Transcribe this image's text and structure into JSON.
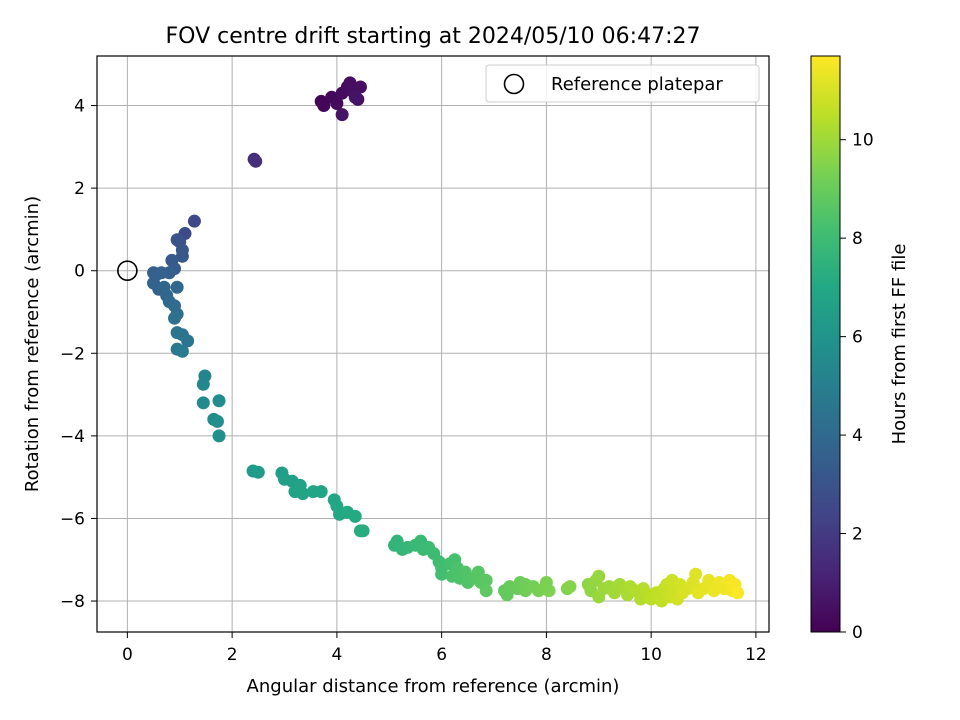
{
  "chart_data": {
    "type": "scatter",
    "title": "FOV centre drift starting at 2024/05/10 06:47:27",
    "xlabel": "Angular distance from reference (arcmin)",
    "ylabel": "Rotation from reference (arcmin)",
    "xlim": [
      -0.58,
      12.25
    ],
    "ylim": [
      -8.75,
      5.2
    ],
    "x_ticks": [
      0,
      2,
      4,
      6,
      8,
      10,
      12
    ],
    "x_tick_labels": [
      "0",
      "2",
      "4",
      "6",
      "8",
      "10",
      "12"
    ],
    "y_ticks": [
      -8,
      -6,
      -4,
      -2,
      0,
      2,
      4
    ],
    "y_tick_labels": [
      "−8",
      "−6",
      "−4",
      "−2",
      "0",
      "2",
      "4"
    ],
    "grid": true,
    "legend": {
      "position": "top-right",
      "entries": [
        {
          "label": "Reference platepar",
          "marker": "open-circle"
        }
      ]
    },
    "reference_point": {
      "x": 0,
      "y": 0
    },
    "colorbar": {
      "label": "Hours from first FF file",
      "range": [
        0,
        11.7
      ],
      "ticks": [
        0,
        2,
        4,
        6,
        8,
        10
      ],
      "tick_labels": [
        "0",
        "2",
        "4",
        "6",
        "8",
        "10"
      ],
      "colormap": "viridis"
    },
    "points": [
      {
        "x": 3.7,
        "y": 4.1,
        "t": 0.1
      },
      {
        "x": 3.75,
        "y": 4.0,
        "t": 0.15
      },
      {
        "x": 3.9,
        "y": 4.2,
        "t": 0.2
      },
      {
        "x": 4.0,
        "y": 4.05,
        "t": 0.3
      },
      {
        "x": 4.1,
        "y": 4.3,
        "t": 0.35
      },
      {
        "x": 4.2,
        "y": 4.45,
        "t": 0.4
      },
      {
        "x": 4.25,
        "y": 4.55,
        "t": 0.45
      },
      {
        "x": 4.3,
        "y": 4.35,
        "t": 0.5
      },
      {
        "x": 4.4,
        "y": 4.15,
        "t": 0.55
      },
      {
        "x": 4.45,
        "y": 4.45,
        "t": 0.5
      },
      {
        "x": 4.1,
        "y": 3.78,
        "t": 0.6
      },
      {
        "x": 4.35,
        "y": 4.2,
        "t": 0.65
      },
      {
        "x": 2.42,
        "y": 2.7,
        "t": 1.5
      },
      {
        "x": 2.45,
        "y": 2.65,
        "t": 1.6
      },
      {
        "x": 1.28,
        "y": 1.2,
        "t": 2.5
      },
      {
        "x": 1.1,
        "y": 0.9,
        "t": 2.7
      },
      {
        "x": 1.0,
        "y": 0.7,
        "t": 2.9
      },
      {
        "x": 0.95,
        "y": 0.75,
        "t": 3.0
      },
      {
        "x": 1.05,
        "y": 0.5,
        "t": 3.1
      },
      {
        "x": 1.05,
        "y": 0.35,
        "t": 3.2
      },
      {
        "x": 0.85,
        "y": 0.25,
        "t": 3.3
      },
      {
        "x": 0.9,
        "y": 0.05,
        "t": 3.4
      },
      {
        "x": 0.8,
        "y": -0.05,
        "t": 3.5
      },
      {
        "x": 0.5,
        "y": -0.05,
        "t": 3.5
      },
      {
        "x": 0.55,
        "y": -0.1,
        "t": 3.6
      },
      {
        "x": 0.65,
        "y": -0.05,
        "t": 3.6
      },
      {
        "x": 0.5,
        "y": -0.3,
        "t": 3.7
      },
      {
        "x": 0.6,
        "y": -0.45,
        "t": 3.7
      },
      {
        "x": 0.7,
        "y": -0.4,
        "t": 3.8
      },
      {
        "x": 0.75,
        "y": -0.6,
        "t": 3.9
      },
      {
        "x": 0.95,
        "y": -0.4,
        "t": 3.9
      },
      {
        "x": 0.8,
        "y": -0.75,
        "t": 4.0
      },
      {
        "x": 0.9,
        "y": -0.85,
        "t": 4.1
      },
      {
        "x": 0.95,
        "y": -1.05,
        "t": 4.2
      },
      {
        "x": 0.9,
        "y": -1.15,
        "t": 4.3
      },
      {
        "x": 1.05,
        "y": -1.55,
        "t": 4.4
      },
      {
        "x": 0.95,
        "y": -1.5,
        "t": 4.5
      },
      {
        "x": 1.15,
        "y": -1.7,
        "t": 4.6
      },
      {
        "x": 0.95,
        "y": -1.9,
        "t": 4.7
      },
      {
        "x": 1.05,
        "y": -1.95,
        "t": 4.8
      },
      {
        "x": 1.48,
        "y": -2.55,
        "t": 5.3
      },
      {
        "x": 1.45,
        "y": -2.75,
        "t": 5.4
      },
      {
        "x": 1.45,
        "y": -3.2,
        "t": 5.5
      },
      {
        "x": 1.75,
        "y": -3.15,
        "t": 5.6
      },
      {
        "x": 1.65,
        "y": -3.6,
        "t": 5.7
      },
      {
        "x": 1.72,
        "y": -3.65,
        "t": 5.75
      },
      {
        "x": 1.75,
        "y": -4.0,
        "t": 5.8
      },
      {
        "x": 2.4,
        "y": -4.85,
        "t": 6.3
      },
      {
        "x": 2.5,
        "y": -4.88,
        "t": 6.4
      },
      {
        "x": 2.95,
        "y": -4.9,
        "t": 6.5
      },
      {
        "x": 3.0,
        "y": -5.05,
        "t": 6.55
      },
      {
        "x": 3.15,
        "y": -5.1,
        "t": 6.6
      },
      {
        "x": 3.3,
        "y": -5.2,
        "t": 6.65
      },
      {
        "x": 3.2,
        "y": -5.35,
        "t": 6.7
      },
      {
        "x": 3.35,
        "y": -5.4,
        "t": 6.75
      },
      {
        "x": 3.55,
        "y": -5.35,
        "t": 6.8
      },
      {
        "x": 3.7,
        "y": -5.35,
        "t": 6.85
      },
      {
        "x": 3.95,
        "y": -5.55,
        "t": 6.9
      },
      {
        "x": 4.0,
        "y": -5.7,
        "t": 6.95
      },
      {
        "x": 4.05,
        "y": -5.9,
        "t": 7.0
      },
      {
        "x": 4.2,
        "y": -5.85,
        "t": 7.05
      },
      {
        "x": 4.35,
        "y": -5.95,
        "t": 7.1
      },
      {
        "x": 4.45,
        "y": -6.3,
        "t": 7.2
      },
      {
        "x": 4.5,
        "y": -6.3,
        "t": 7.25
      },
      {
        "x": 5.1,
        "y": -6.65,
        "t": 7.6
      },
      {
        "x": 5.15,
        "y": -6.55,
        "t": 7.65
      },
      {
        "x": 5.25,
        "y": -6.75,
        "t": 7.7
      },
      {
        "x": 5.35,
        "y": -6.7,
        "t": 7.75
      },
      {
        "x": 5.5,
        "y": -6.65,
        "t": 7.8
      },
      {
        "x": 5.6,
        "y": -6.55,
        "t": 7.85
      },
      {
        "x": 5.65,
        "y": -6.75,
        "t": 7.9
      },
      {
        "x": 5.75,
        "y": -6.7,
        "t": 7.95
      },
      {
        "x": 5.85,
        "y": -6.85,
        "t": 8.0
      },
      {
        "x": 5.95,
        "y": -7.05,
        "t": 8.05
      },
      {
        "x": 6.0,
        "y": -7.2,
        "t": 8.1
      },
      {
        "x": 6.0,
        "y": -7.35,
        "t": 8.15
      },
      {
        "x": 6.15,
        "y": -7.1,
        "t": 8.2
      },
      {
        "x": 6.25,
        "y": -7.0,
        "t": 8.25
      },
      {
        "x": 6.3,
        "y": -7.2,
        "t": 8.3
      },
      {
        "x": 6.2,
        "y": -7.4,
        "t": 8.35
      },
      {
        "x": 6.35,
        "y": -7.45,
        "t": 8.4
      },
      {
        "x": 6.45,
        "y": -7.3,
        "t": 8.45
      },
      {
        "x": 6.5,
        "y": -7.55,
        "t": 8.5
      },
      {
        "x": 6.6,
        "y": -7.45,
        "t": 8.55
      },
      {
        "x": 6.7,
        "y": -7.3,
        "t": 8.6
      },
      {
        "x": 6.75,
        "y": -7.55,
        "t": 8.65
      },
      {
        "x": 6.85,
        "y": -7.5,
        "t": 8.7
      },
      {
        "x": 6.85,
        "y": -7.75,
        "t": 8.75
      },
      {
        "x": 7.2,
        "y": -7.75,
        "t": 8.85
      },
      {
        "x": 7.25,
        "y": -7.85,
        "t": 8.9
      },
      {
        "x": 7.3,
        "y": -7.65,
        "t": 8.95
      },
      {
        "x": 7.45,
        "y": -7.7,
        "t": 9.0
      },
      {
        "x": 7.5,
        "y": -7.55,
        "t": 9.05
      },
      {
        "x": 7.6,
        "y": -7.6,
        "t": 9.1
      },
      {
        "x": 7.6,
        "y": -7.75,
        "t": 9.15
      },
      {
        "x": 7.75,
        "y": -7.65,
        "t": 9.2
      },
      {
        "x": 7.85,
        "y": -7.75,
        "t": 9.25
      },
      {
        "x": 7.95,
        "y": -7.7,
        "t": 9.3
      },
      {
        "x": 8.0,
        "y": -7.55,
        "t": 9.35
      },
      {
        "x": 8.05,
        "y": -7.75,
        "t": 9.4
      },
      {
        "x": 8.4,
        "y": -7.7,
        "t": 9.5
      },
      {
        "x": 8.45,
        "y": -7.65,
        "t": 9.55
      },
      {
        "x": 8.8,
        "y": -7.6,
        "t": 9.7
      },
      {
        "x": 8.85,
        "y": -7.75,
        "t": 9.75
      },
      {
        "x": 8.95,
        "y": -7.5,
        "t": 9.8
      },
      {
        "x": 9.0,
        "y": -7.4,
        "t": 9.85
      },
      {
        "x": 9.0,
        "y": -7.9,
        "t": 9.9
      },
      {
        "x": 9.1,
        "y": -7.7,
        "t": 9.95
      },
      {
        "x": 9.2,
        "y": -7.65,
        "t": 10.0
      },
      {
        "x": 9.3,
        "y": -7.8,
        "t": 10.05
      },
      {
        "x": 9.4,
        "y": -7.6,
        "t": 10.1
      },
      {
        "x": 9.5,
        "y": -7.7,
        "t": 10.15
      },
      {
        "x": 9.55,
        "y": -7.85,
        "t": 10.2
      },
      {
        "x": 9.6,
        "y": -7.65,
        "t": 10.25
      },
      {
        "x": 9.7,
        "y": -7.75,
        "t": 10.3
      },
      {
        "x": 9.8,
        "y": -7.95,
        "t": 10.35
      },
      {
        "x": 9.85,
        "y": -7.7,
        "t": 10.4
      },
      {
        "x": 9.95,
        "y": -7.85,
        "t": 10.45
      },
      {
        "x": 10.0,
        "y": -7.95,
        "t": 10.5
      },
      {
        "x": 10.1,
        "y": -7.8,
        "t": 10.55
      },
      {
        "x": 10.2,
        "y": -8.0,
        "t": 10.6
      },
      {
        "x": 10.25,
        "y": -7.7,
        "t": 10.65
      },
      {
        "x": 10.3,
        "y": -7.6,
        "t": 10.7
      },
      {
        "x": 10.35,
        "y": -7.9,
        "t": 10.75
      },
      {
        "x": 10.4,
        "y": -7.5,
        "t": 10.8
      },
      {
        "x": 10.45,
        "y": -7.75,
        "t": 10.85
      },
      {
        "x": 10.5,
        "y": -7.95,
        "t": 10.9
      },
      {
        "x": 10.55,
        "y": -7.6,
        "t": 10.95
      },
      {
        "x": 10.6,
        "y": -7.8,
        "t": 11.0
      },
      {
        "x": 10.7,
        "y": -7.7,
        "t": 11.05
      },
      {
        "x": 10.8,
        "y": -7.55,
        "t": 11.1
      },
      {
        "x": 10.85,
        "y": -7.35,
        "t": 11.15
      },
      {
        "x": 10.9,
        "y": -7.8,
        "t": 11.2
      },
      {
        "x": 11.0,
        "y": -7.7,
        "t": 11.25
      },
      {
        "x": 11.1,
        "y": -7.5,
        "t": 11.3
      },
      {
        "x": 11.2,
        "y": -7.75,
        "t": 11.35
      },
      {
        "x": 11.3,
        "y": -7.55,
        "t": 11.4
      },
      {
        "x": 11.4,
        "y": -7.7,
        "t": 11.45
      },
      {
        "x": 11.5,
        "y": -7.5,
        "t": 11.5
      },
      {
        "x": 11.55,
        "y": -7.75,
        "t": 11.55
      },
      {
        "x": 11.6,
        "y": -7.6,
        "t": 11.6
      },
      {
        "x": 11.65,
        "y": -7.8,
        "t": 11.65
      }
    ]
  }
}
